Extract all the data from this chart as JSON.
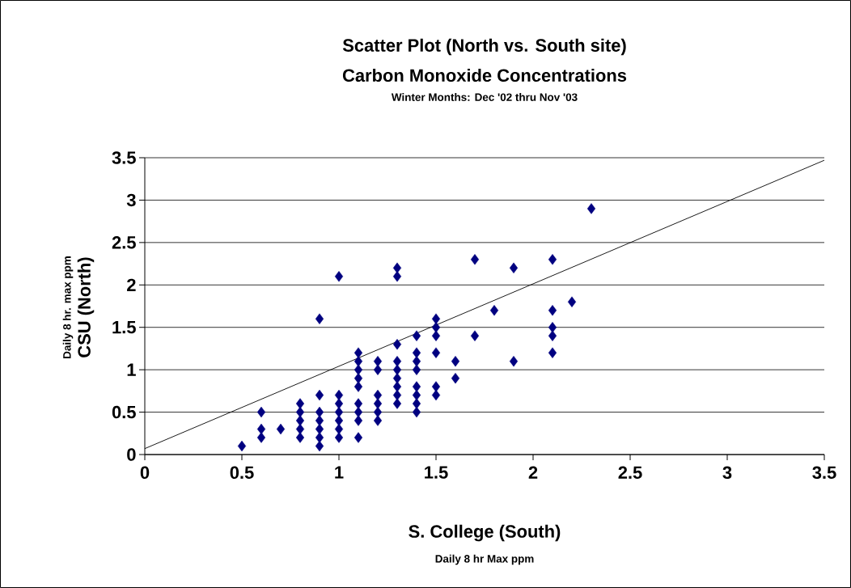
{
  "chart_data": {
    "type": "scatter",
    "title": "Scatter Plot (North vs. South site)",
    "subtitle": "Carbon Monoxide Concentrations",
    "annotations": [
      "Winter Months: Dec '02 thru Nov '03",
      "Daily 8 hr Max ppm",
      "Daily 8 hr. max ppm"
    ],
    "xlabel": "S. College (South)",
    "ylabel": "CSU (North)",
    "xlim": [
      0,
      3.5
    ],
    "ylim": [
      0,
      3.5
    ],
    "xticks": [
      0,
      0.5,
      1,
      1.5,
      2,
      2.5,
      3,
      3.5
    ],
    "yticks": [
      0,
      0.5,
      1,
      1.5,
      2,
      2.5,
      3,
      3.5
    ],
    "grid": "y",
    "marker": "diamond",
    "series": [
      {
        "color": "#000080",
        "x": [
          0.5,
          0.6,
          0.6,
          0.6,
          0.7,
          0.8,
          0.8,
          0.8,
          0.8,
          0.8,
          0.9,
          0.9,
          0.9,
          0.9,
          0.9,
          0.9,
          0.9,
          1.0,
          1.0,
          1.0,
          1.0,
          1.0,
          1.0,
          1.0,
          1.1,
          1.1,
          1.1,
          1.1,
          1.1,
          1.1,
          1.1,
          1.1,
          1.1,
          1.2,
          1.2,
          1.2,
          1.2,
          1.2,
          1.2,
          1.3,
          1.3,
          1.3,
          1.3,
          1.3,
          1.3,
          1.3,
          1.3,
          1.3,
          1.4,
          1.4,
          1.4,
          1.4,
          1.4,
          1.4,
          1.4,
          1.4,
          1.5,
          1.5,
          1.5,
          1.5,
          1.5,
          1.5,
          1.6,
          1.6,
          1.7,
          1.7,
          1.8,
          1.9,
          1.9,
          2.1,
          2.1,
          2.1,
          2.1,
          2.1,
          2.2,
          2.3
        ],
        "values": [
          0.1,
          0.2,
          0.3,
          0.5,
          0.3,
          0.2,
          0.3,
          0.4,
          0.5,
          0.6,
          0.1,
          0.2,
          0.3,
          0.4,
          0.5,
          0.7,
          1.6,
          0.2,
          0.3,
          0.4,
          0.5,
          0.6,
          0.7,
          2.1,
          0.2,
          0.4,
          0.5,
          0.6,
          0.8,
          0.9,
          1.0,
          1.1,
          1.2,
          0.4,
          0.5,
          0.6,
          0.7,
          1.0,
          1.1,
          0.6,
          0.7,
          0.8,
          0.9,
          1.0,
          1.1,
          1.3,
          2.1,
          2.2,
          0.5,
          0.6,
          0.7,
          0.8,
          1.0,
          1.1,
          1.2,
          1.4,
          0.7,
          0.8,
          1.2,
          1.4,
          1.5,
          1.6,
          0.9,
          1.1,
          1.4,
          2.3,
          1.7,
          1.1,
          2.2,
          1.2,
          1.4,
          1.5,
          1.7,
          2.3,
          1.8,
          2.9
        ]
      },
      {
        "type": "line",
        "color": "#000000",
        "marker": "none",
        "line_style": "solid",
        "x": [
          0,
          3.5
        ],
        "values": [
          0.07,
          3.47
        ]
      }
    ]
  }
}
